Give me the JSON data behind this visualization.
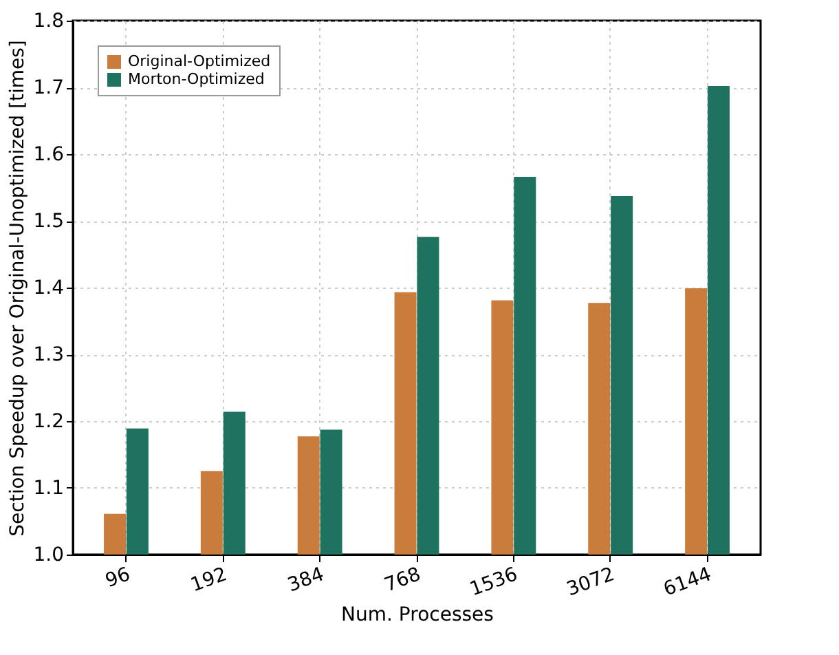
{
  "chart_data": {
    "type": "bar",
    "xlabel": "Num. Processes",
    "ylabel": "Section Speedup over Original-Unoptimized [times]",
    "categories": [
      "96",
      "192",
      "384",
      "768",
      "1536",
      "3072",
      "6144"
    ],
    "series": [
      {
        "name": "Original-Optimized",
        "color": "#c97c3b",
        "values": [
          1.061,
          1.125,
          1.177,
          1.393,
          1.381,
          1.377,
          1.399
        ]
      },
      {
        "name": "Morton-Optimized",
        "color": "#1d7260",
        "values": [
          1.189,
          1.214,
          1.187,
          1.476,
          1.566,
          1.537,
          1.702
        ]
      }
    ],
    "ylim": [
      1.0,
      1.8
    ],
    "yticks": [
      {
        "value": 1.0,
        "label": "1.0"
      },
      1.1,
      1.2,
      1.3,
      1.4,
      1.5,
      1.6,
      1.7,
      1.8
    ],
    "grid": true,
    "legend": "top left"
  }
}
